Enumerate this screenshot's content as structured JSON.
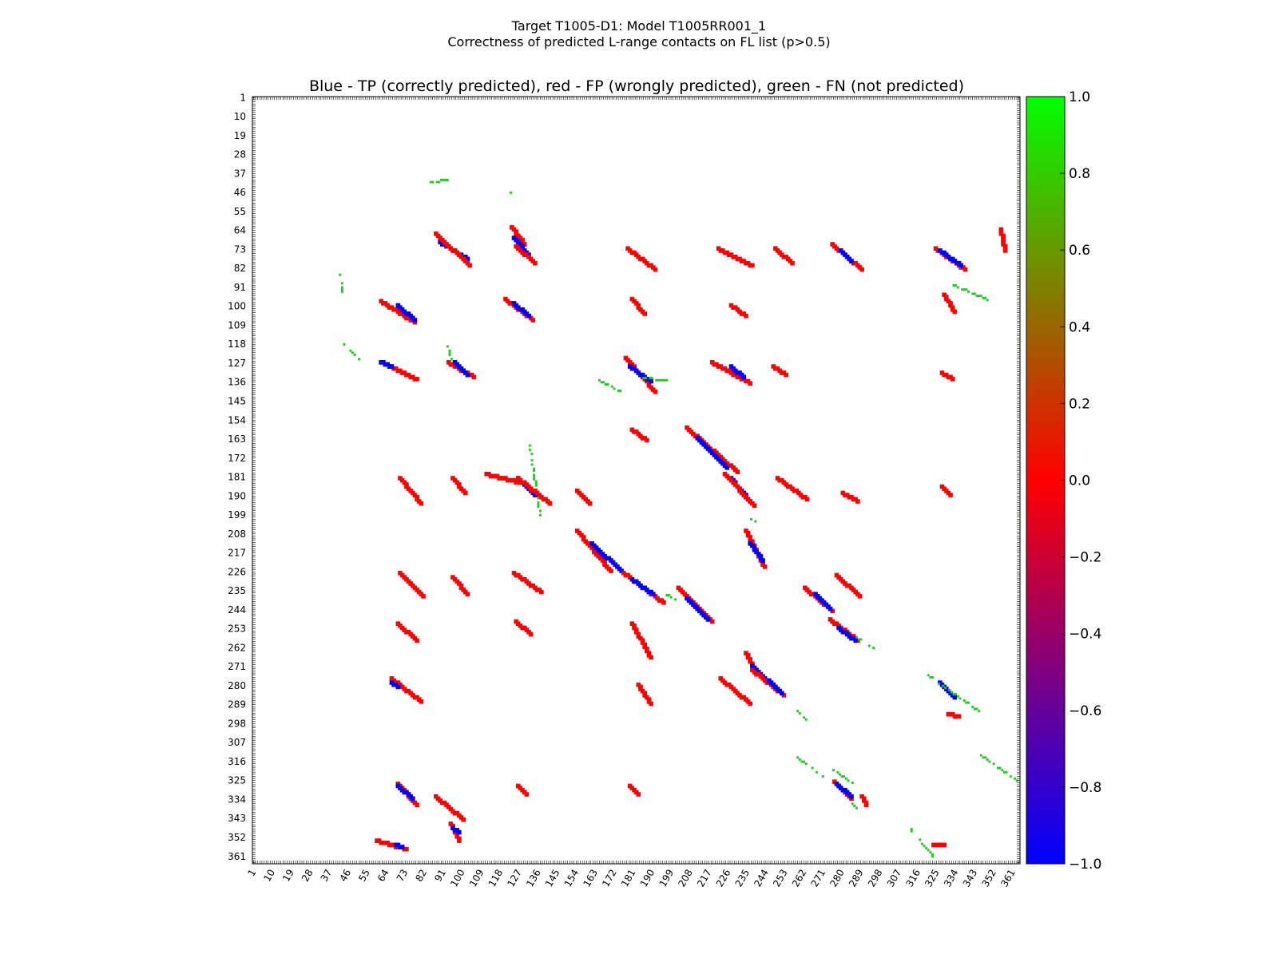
{
  "figure": {
    "suptitle_line1": "Target T1005-D1: Model T1005RR001_1",
    "suptitle_line2": "Correctness of predicted L-range contacts on FL list (p>0.5)"
  },
  "chart_data": {
    "type": "heatmap",
    "title": "Blue - TP (correctly predicted), red - FP (wrongly predicted), green - FN (not predicted)",
    "xlabel": "",
    "ylabel": "",
    "xlim": [
      1,
      364
    ],
    "ylim": [
      1,
      364
    ],
    "x_ticks": [
      "1",
      "10",
      "19",
      "28",
      "37",
      "46",
      "55",
      "64",
      "73",
      "82",
      "91",
      "100",
      "109",
      "118",
      "127",
      "136",
      "145",
      "154",
      "163",
      "172",
      "181",
      "190",
      "199",
      "208",
      "217",
      "226",
      "235",
      "244",
      "253",
      "262",
      "271",
      "280",
      "289",
      "298",
      "307",
      "316",
      "325",
      "334",
      "343",
      "352",
      "361"
    ],
    "y_ticks": [
      "1",
      "10",
      "19",
      "28",
      "37",
      "46",
      "55",
      "64",
      "73",
      "82",
      "91",
      "100",
      "109",
      "118",
      "127",
      "136",
      "145",
      "154",
      "163",
      "172",
      "181",
      "190",
      "199",
      "208",
      "217",
      "226",
      "235",
      "244",
      "253",
      "262",
      "271",
      "280",
      "289",
      "298",
      "307",
      "316",
      "325",
      "334",
      "343",
      "352",
      "361"
    ],
    "colorbar": {
      "range": [
        -1.0,
        1.0
      ],
      "ticks": [
        "1.0",
        "0.8",
        "0.6",
        "0.4",
        "0.2",
        "0.0",
        "−0.2",
        "−0.4",
        "−0.6",
        "−0.8",
        "−1.0"
      ],
      "colors": {
        "low": "#0000ff",
        "mid": "#ff0000",
        "high": "#00ff00"
      }
    },
    "legend": {
      "TP": "#0000ff",
      "FP": "#ff0000",
      "FN": "#22cc22"
    },
    "grid": false,
    "clusters": [
      {
        "class": "TP",
        "from": [
          90,
          69
        ],
        "to": [
          103,
          77
        ]
      },
      {
        "class": "FP",
        "from": [
          88,
          65
        ],
        "to": [
          104,
          80
        ]
      },
      {
        "class": "FP",
        "from": [
          124,
          62
        ],
        "to": [
          130,
          70
        ]
      },
      {
        "class": "TP",
        "from": [
          125,
          67
        ],
        "to": [
          132,
          75
        ]
      },
      {
        "class": "FP",
        "from": [
          126,
          71
        ],
        "to": [
          135,
          79
        ]
      },
      {
        "class": "FN",
        "from": [
          122,
          45
        ],
        "to": [
          124,
          48
        ]
      },
      {
        "class": "FN",
        "from": [
          85,
          41
        ],
        "to": [
          94,
          40
        ]
      },
      {
        "class": "FP",
        "from": [
          179,
          72
        ],
        "to": [
          192,
          82
        ]
      },
      {
        "class": "FP",
        "from": [
          222,
          72
        ],
        "to": [
          238,
          80
        ]
      },
      {
        "class": "FP",
        "from": [
          249,
          72
        ],
        "to": [
          257,
          79
        ]
      },
      {
        "class": "FP",
        "from": [
          276,
          70
        ],
        "to": [
          290,
          82
        ]
      },
      {
        "class": "TP",
        "from": [
          280,
          73
        ],
        "to": [
          285,
          78
        ]
      },
      {
        "class": "FP",
        "from": [
          325,
          72
        ],
        "to": [
          339,
          82
        ]
      },
      {
        "class": "TP",
        "from": [
          327,
          73
        ],
        "to": [
          337,
          80
        ]
      },
      {
        "class": "FP",
        "from": [
          356,
          63
        ],
        "to": [
          358,
          73
        ]
      },
      {
        "class": "FP",
        "from": [
          62,
          97
        ],
        "to": [
          78,
          107
        ]
      },
      {
        "class": "TP",
        "from": [
          70,
          99
        ],
        "to": [
          78,
          106
        ]
      },
      {
        "class": "FP",
        "from": [
          121,
          96
        ],
        "to": [
          134,
          106
        ]
      },
      {
        "class": "TP",
        "from": [
          125,
          98
        ],
        "to": [
          132,
          104
        ]
      },
      {
        "class": "FP",
        "from": [
          181,
          96
        ],
        "to": [
          187,
          103
        ]
      },
      {
        "class": "FP",
        "from": [
          228,
          99
        ],
        "to": [
          235,
          104
        ]
      },
      {
        "class": "FP",
        "from": [
          329,
          94
        ],
        "to": [
          334,
          102
        ]
      },
      {
        "class": "FN",
        "from": [
          333,
          90
        ],
        "to": [
          350,
          97
        ]
      },
      {
        "class": "FN",
        "from": [
          42,
          85
        ],
        "to": [
          43,
          93
        ]
      },
      {
        "class": "FN",
        "from": [
          44,
          118
        ],
        "to": [
          51,
          125
        ]
      },
      {
        "class": "FP",
        "from": [
          62,
          126
        ],
        "to": [
          79,
          134
        ]
      },
      {
        "class": "TP",
        "from": [
          62,
          126
        ],
        "to": [
          67,
          128
        ]
      },
      {
        "class": "FP",
        "from": [
          94,
          126
        ],
        "to": [
          106,
          133
        ]
      },
      {
        "class": "TP",
        "from": [
          97,
          126
        ],
        "to": [
          103,
          132
        ]
      },
      {
        "class": "FN",
        "from": [
          93,
          118
        ],
        "to": [
          95,
          125
        ]
      },
      {
        "class": "FP",
        "from": [
          178,
          124
        ],
        "to": [
          192,
          140
        ]
      },
      {
        "class": "TP",
        "from": [
          180,
          128
        ],
        "to": [
          190,
          135
        ]
      },
      {
        "class": "FN",
        "from": [
          185,
          134
        ],
        "to": [
          197,
          135
        ]
      },
      {
        "class": "FN",
        "from": [
          165,
          135
        ],
        "to": [
          175,
          140
        ]
      },
      {
        "class": "FP",
        "from": [
          219,
          126
        ],
        "to": [
          237,
          136
        ]
      },
      {
        "class": "TP",
        "from": [
          228,
          128
        ],
        "to": [
          234,
          133
        ]
      },
      {
        "class": "FP",
        "from": [
          248,
          128
        ],
        "to": [
          254,
          132
        ]
      },
      {
        "class": "FP",
        "from": [
          328,
          131
        ],
        "to": [
          333,
          134
        ]
      },
      {
        "class": "FP",
        "from": [
          181,
          158
        ],
        "to": [
          188,
          163
        ]
      },
      {
        "class": "FP",
        "from": [
          207,
          157
        ],
        "to": [
          231,
          178
        ]
      },
      {
        "class": "TP",
        "from": [
          212,
          162
        ],
        "to": [
          226,
          176
        ]
      },
      {
        "class": "FP",
        "from": [
          71,
          181
        ],
        "to": [
          81,
          193
        ]
      },
      {
        "class": "FP",
        "from": [
          96,
          181
        ],
        "to": [
          102,
          188
        ]
      },
      {
        "class": "FP",
        "from": [
          112,
          179
        ],
        "to": [
          127,
          183
        ]
      },
      {
        "class": "TP",
        "from": [
          127,
          181
        ],
        "to": [
          135,
          189
        ]
      },
      {
        "class": "FP",
        "from": [
          127,
          181
        ],
        "to": [
          142,
          193
        ]
      },
      {
        "class": "FN",
        "from": [
          132,
          166
        ],
        "to": [
          137,
          199
        ]
      },
      {
        "class": "FP",
        "from": [
          155,
          187
        ],
        "to": [
          161,
          193
        ]
      },
      {
        "class": "TP",
        "from": [
          228,
          181
        ],
        "to": [
          237,
          192
        ]
      },
      {
        "class": "FP",
        "from": [
          225,
          179
        ],
        "to": [
          239,
          194
        ]
      },
      {
        "class": "FP",
        "from": [
          250,
          181
        ],
        "to": [
          264,
          191
        ]
      },
      {
        "class": "FP",
        "from": [
          281,
          188
        ],
        "to": [
          288,
          192
        ]
      },
      {
        "class": "FP",
        "from": [
          328,
          185
        ],
        "to": [
          332,
          189
        ]
      },
      {
        "class": "FN",
        "from": [
          237,
          201
        ],
        "to": [
          240,
          203
        ]
      },
      {
        "class": "FP",
        "from": [
          155,
          206
        ],
        "to": [
          171,
          225
        ]
      },
      {
        "class": "TP",
        "from": [
          162,
          212
        ],
        "to": [
          176,
          225
        ]
      },
      {
        "class": "FP",
        "from": [
          235,
          206
        ],
        "to": [
          244,
          223
        ]
      },
      {
        "class": "TP",
        "from": [
          237,
          212
        ],
        "to": [
          243,
          220
        ]
      },
      {
        "class": "FP",
        "from": [
          71,
          226
        ],
        "to": [
          82,
          237
        ]
      },
      {
        "class": "FP",
        "from": [
          96,
          228
        ],
        "to": [
          103,
          236
        ]
      },
      {
        "class": "FP",
        "from": [
          125,
          226
        ],
        "to": [
          138,
          235
        ]
      },
      {
        "class": "FP",
        "from": [
          177,
          226
        ],
        "to": [
          196,
          240
        ]
      },
      {
        "class": "TP",
        "from": [
          181,
          229
        ],
        "to": [
          191,
          236
        ]
      },
      {
        "class": "FN",
        "from": [
          197,
          237
        ],
        "to": [
          202,
          239
        ]
      },
      {
        "class": "FP",
        "from": [
          203,
          233
        ],
        "to": [
          219,
          249
        ]
      },
      {
        "class": "TP",
        "from": [
          207,
          238
        ],
        "to": [
          217,
          248
        ]
      },
      {
        "class": "FP",
        "from": [
          263,
          233
        ],
        "to": [
          276,
          244
        ]
      },
      {
        "class": "TP",
        "from": [
          268,
          236
        ],
        "to": [
          275,
          243
        ]
      },
      {
        "class": "FP",
        "from": [
          278,
          227
        ],
        "to": [
          289,
          237
        ]
      },
      {
        "class": "FP",
        "from": [
          70,
          250
        ],
        "to": [
          79,
          258
        ]
      },
      {
        "class": "FP",
        "from": [
          126,
          249
        ],
        "to": [
          133,
          255
        ]
      },
      {
        "class": "FP",
        "from": [
          181,
          250
        ],
        "to": [
          190,
          266
        ]
      },
      {
        "class": "FP",
        "from": [
          275,
          248
        ],
        "to": [
          288,
          258
        ]
      },
      {
        "class": "TP",
        "from": [
          279,
          252
        ],
        "to": [
          287,
          258
        ]
      },
      {
        "class": "FN",
        "from": [
          287,
          257
        ],
        "to": [
          295,
          262
        ]
      },
      {
        "class": "FP",
        "from": [
          235,
          264
        ],
        "to": [
          240,
          274
        ]
      },
      {
        "class": "TP",
        "from": [
          238,
          270
        ],
        "to": [
          248,
          280
        ]
      },
      {
        "class": "FP",
        "from": [
          238,
          272
        ],
        "to": [
          253,
          284
        ]
      },
      {
        "class": "TP",
        "from": [
          246,
          277
        ],
        "to": [
          252,
          283
        ]
      },
      {
        "class": "FP",
        "from": [
          67,
          276
        ],
        "to": [
          81,
          287
        ]
      },
      {
        "class": "TP",
        "from": [
          67,
          278
        ],
        "to": [
          70,
          280
        ]
      },
      {
        "class": "FP",
        "from": [
          184,
          279
        ],
        "to": [
          190,
          288
        ]
      },
      {
        "class": "FP",
        "from": [
          223,
          276
        ],
        "to": [
          237,
          288
        ]
      },
      {
        "class": "TP",
        "from": [
          327,
          278
        ],
        "to": [
          334,
          285
        ]
      },
      {
        "class": "FN",
        "from": [
          321,
          275
        ],
        "to": [
          345,
          292
        ]
      },
      {
        "class": "FP",
        "from": [
          331,
          293
        ],
        "to": [
          336,
          294
        ]
      },
      {
        "class": "FN",
        "from": [
          259,
          292
        ],
        "to": [
          265,
          298
        ]
      },
      {
        "class": "FN",
        "from": [
          346,
          313
        ],
        "to": [
          363,
          325
        ]
      },
      {
        "class": "FN",
        "from": [
          259,
          314
        ],
        "to": [
          271,
          323
        ]
      },
      {
        "class": "FN",
        "from": [
          276,
          320
        ],
        "to": [
          285,
          326
        ]
      },
      {
        "class": "FP",
        "from": [
          70,
          326
        ],
        "to": [
          79,
          336
        ]
      },
      {
        "class": "TP",
        "from": [
          70,
          327
        ],
        "to": [
          77,
          333
        ]
      },
      {
        "class": "FP",
        "from": [
          127,
          327
        ],
        "to": [
          131,
          331
        ]
      },
      {
        "class": "FP",
        "from": [
          180,
          327
        ],
        "to": [
          184,
          331
        ]
      },
      {
        "class": "FP",
        "from": [
          277,
          325
        ],
        "to": [
          285,
          333
        ]
      },
      {
        "class": "TP",
        "from": [
          278,
          326
        ],
        "to": [
          285,
          332
        ]
      },
      {
        "class": "FP",
        "from": [
          290,
          332
        ],
        "to": [
          292,
          336
        ]
      },
      {
        "class": "FN",
        "from": [
          285,
          336
        ],
        "to": [
          290,
          342
        ]
      },
      {
        "class": "FP",
        "from": [
          88,
          332
        ],
        "to": [
          101,
          343
        ]
      },
      {
        "class": "FP",
        "from": [
          95,
          345
        ],
        "to": [
          99,
          353
        ]
      },
      {
        "class": "TP",
        "from": [
          96,
          347
        ],
        "to": [
          99,
          349
        ]
      },
      {
        "class": "FP",
        "from": [
          60,
          353
        ],
        "to": [
          74,
          357
        ]
      },
      {
        "class": "TP",
        "from": [
          69,
          355
        ],
        "to": [
          72,
          356
        ]
      },
      {
        "class": "FN",
        "from": [
          311,
          346
        ],
        "to": [
          325,
          363
        ]
      },
      {
        "class": "FP",
        "from": [
          324,
          355
        ],
        "to": [
          329,
          355
        ]
      }
    ]
  }
}
